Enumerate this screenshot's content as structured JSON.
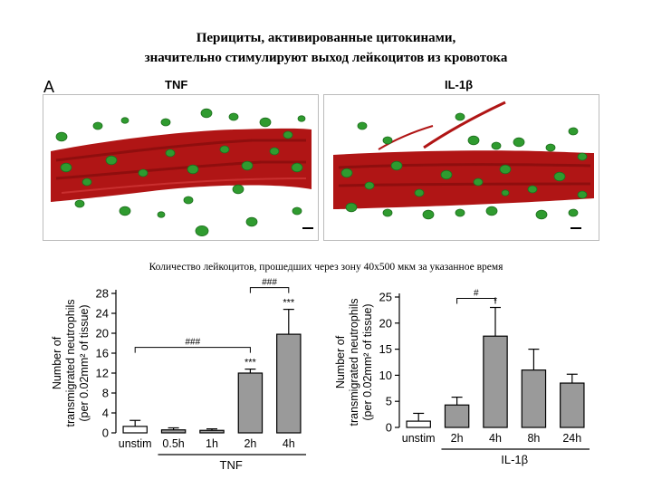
{
  "title_line1": "Перициты, активированные цитокинами,",
  "title_line2": "значительно стимулируют выход лейкоцитов из кровотока",
  "panel_letter": "A",
  "image_labels": [
    "TNF",
    "IL-1β"
  ],
  "caption": "Количество лейкоцитов, прошедших через зону 40x500 мкм за указанное время",
  "colors": {
    "vessel": "#b01515",
    "cell": "#2f9b2f",
    "bar_control": "#ffffff",
    "bar_treated": "#9a9a9a"
  },
  "chart_data": [
    {
      "type": "bar",
      "ylabel": [
        "Number of",
        "transmigrated neutrophils",
        "(per 0.02mm² of tissue)"
      ],
      "xgroup_label": "TNF",
      "categories": [
        "unstim",
        "0.5h",
        "1h",
        "2h",
        "4h"
      ],
      "values": [
        1.3,
        0.6,
        0.5,
        12.0,
        19.8
      ],
      "errors": [
        1.2,
        0.4,
        0.3,
        0.8,
        5.0
      ],
      "ylim": [
        0,
        28
      ],
      "yticks": [
        0,
        4,
        8,
        12,
        16,
        20,
        24,
        28
      ],
      "annotations": [
        {
          "category": "2h",
          "text": "***"
        },
        {
          "category": "4h",
          "text": "***"
        }
      ],
      "brackets": [
        {
          "from": "unstim",
          "to": "2h",
          "text": "###"
        },
        {
          "from": "2h",
          "to": "4h",
          "text": "###"
        }
      ]
    },
    {
      "type": "bar",
      "ylabel": [
        "Number of",
        "transmigrated neutrophils",
        "(per 0.02mm² of tissue)"
      ],
      "xgroup_label": "IL-1β",
      "categories": [
        "unstim",
        "2h",
        "4h",
        "8h",
        "24h"
      ],
      "values": [
        1.2,
        4.3,
        17.5,
        11.0,
        8.5
      ],
      "errors": [
        1.5,
        1.5,
        5.5,
        4.0,
        1.7
      ],
      "ylim": [
        0,
        25
      ],
      "yticks": [
        0,
        5,
        10,
        15,
        20,
        25
      ],
      "annotations": [
        {
          "category": "4h",
          "text": "*"
        }
      ],
      "brackets": [
        {
          "from": "2h",
          "to": "4h",
          "text": "#"
        }
      ]
    }
  ]
}
